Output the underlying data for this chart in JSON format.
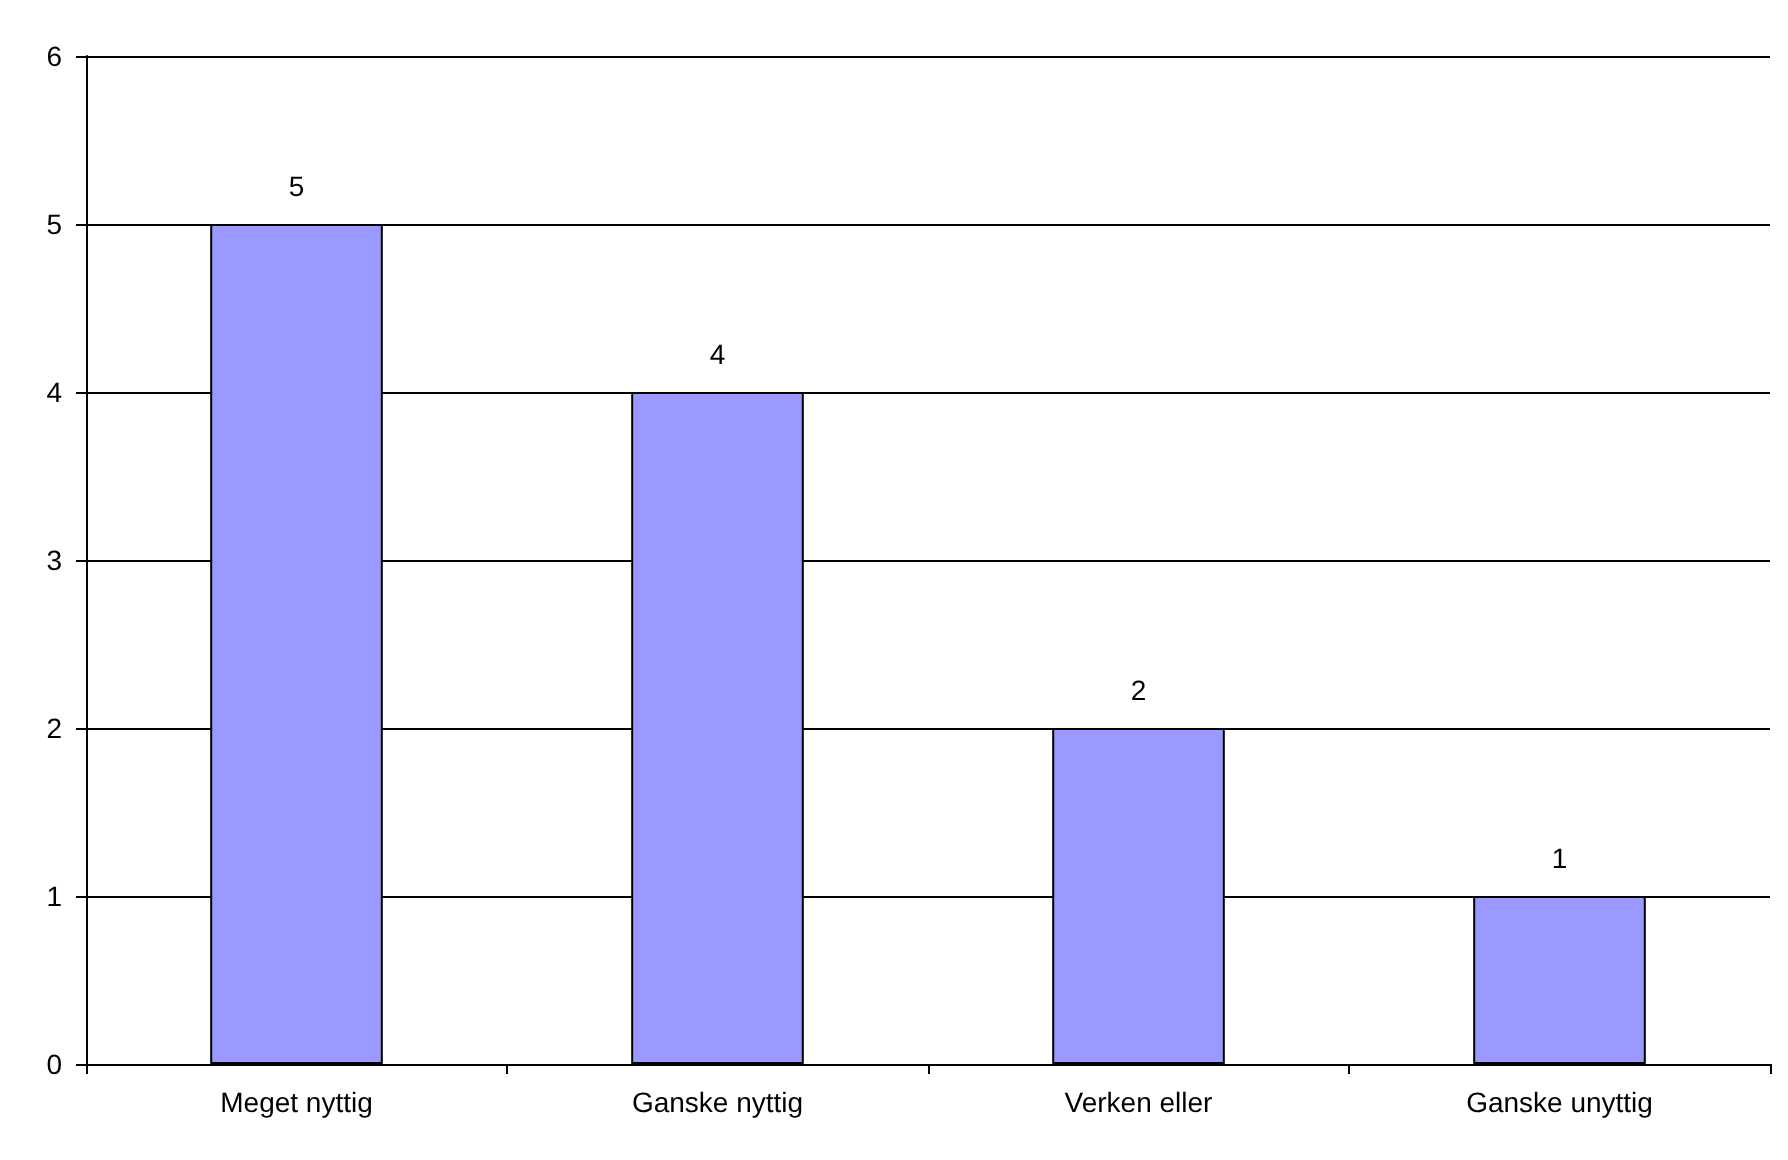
{
  "chart_data": {
    "type": "bar",
    "categories": [
      "Meget nyttig",
      "Ganske nyttig",
      "Verken eller",
      "Ganske unyttig"
    ],
    "values": [
      5,
      4,
      2,
      1
    ],
    "color": "#9999ff",
    "ylim": [
      0,
      6
    ],
    "yticks": [
      0,
      1,
      2,
      3,
      4,
      5,
      6
    ],
    "grid": "y",
    "data_labels": true
  }
}
